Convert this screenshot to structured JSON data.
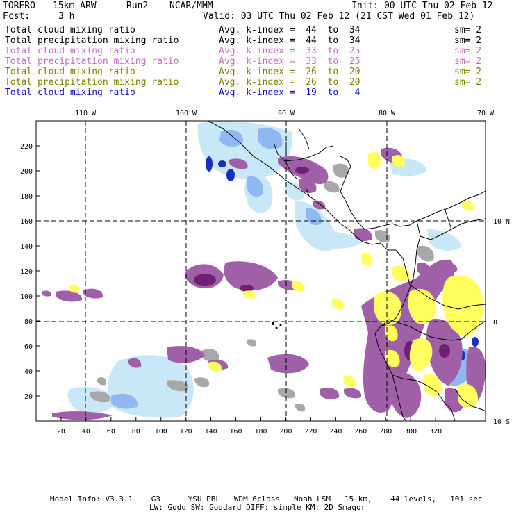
{
  "header": {
    "model": "TORERO",
    "resolution": "15km ARW",
    "run": "Run2",
    "center": "NCAR/MMM",
    "init": "Init: 00 UTC Thu 02 Feb 12",
    "fcst_label": "Fcst:",
    "fcst_value": "3 h",
    "valid": "Valid: 03 UTC Thu 02 Feb 12 (21 CST Wed 01 Feb 12)"
  },
  "legend": [
    {
      "field": "Total cloud mixing ratio",
      "index": "Avg. k-index =  44  to  34",
      "sm": "sm= 2",
      "color": "#000000"
    },
    {
      "field": "Total precipitation mixing ratio",
      "index": "Avg. k-index =  44  to  34",
      "sm": "sm= 2",
      "color": "#000000"
    },
    {
      "field": "Total cloud mixing ratio",
      "index": "Avg. k-index =  33  to  25",
      "sm": "sm= 2",
      "color": "#c070c0"
    },
    {
      "field": "Total precipitation mixing ratio",
      "index": "Avg. k-index =  33  to  25",
      "sm": "sm= 2",
      "color": "#c070c0"
    },
    {
      "field": "Total cloud mixing ratio",
      "index": "Avg. k-index =  26  to  20",
      "sm": "sm= 2",
      "color": "#808000"
    },
    {
      "field": "Total precipitation mixing ratio",
      "index": "Avg. k-index =  26  to  20",
      "sm": "sm= 2",
      "color": "#808000"
    },
    {
      "field": "Total cloud mixing ratio",
      "index": "Avg. k-index =  19  to   4",
      "sm": "",
      "color": "#1010d0"
    }
  ],
  "map": {
    "lon_labels": [
      "110 W",
      "100 W",
      "90 W",
      "80 W",
      "70 W"
    ],
    "lat_labels": [
      "10 N",
      "0",
      "10 S"
    ],
    "x_ticks": [
      "20",
      "40",
      "60",
      "80",
      "100",
      "120",
      "140",
      "160",
      "180",
      "200",
      "220",
      "240",
      "260",
      "280",
      "300",
      "320"
    ],
    "y_ticks": [
      "20",
      "40",
      "60",
      "80",
      "100",
      "120",
      "140",
      "160",
      "180",
      "200",
      "220"
    ],
    "colors": {
      "gray": "#a8a8a8",
      "purple": "#a060a8",
      "dark_purple": "#702070",
      "yellow": "#ffff60",
      "light_blue": "#c8e8f8",
      "medium_blue": "#90b8f0",
      "dark_blue": "#1830c0"
    }
  },
  "footer": {
    "line1": "Model Info: V3.3.1    G3      YSU PBL   WDM 6class   Noah LSM   15 km,    44 levels,   101 sec",
    "line2": "LW: Godd SW: Goddard DIFF: simple KM: 2D Smagor"
  }
}
